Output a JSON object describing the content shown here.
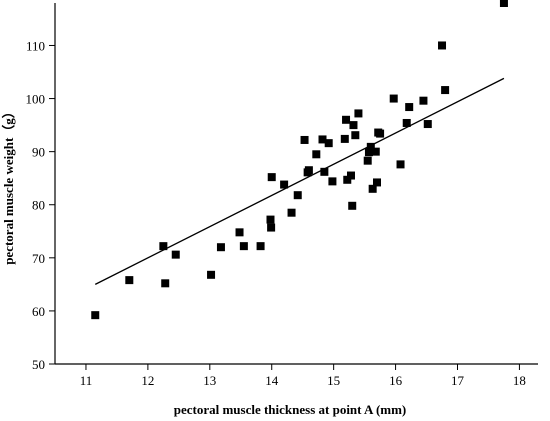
{
  "chart_data": {
    "type": "scatter",
    "title": "",
    "xlabel": "pectoral muscle thickness at point A (mm)",
    "ylabel": "pectoral muscle weight（g）",
    "xlim": [
      10.5,
      18.3
    ],
    "ylim": [
      50,
      118
    ],
    "xticks": [
      11,
      12,
      13,
      14,
      15,
      16,
      17,
      18
    ],
    "yticks": [
      50,
      60,
      70,
      80,
      90,
      100,
      110
    ],
    "grid": false,
    "legend": "none",
    "marker_color": "#000000",
    "series": [
      {
        "points": [
          [
            11.15,
            59.2
          ],
          [
            11.7,
            65.8
          ],
          [
            12.25,
            72.2
          ],
          [
            12.28,
            65.2
          ],
          [
            12.45,
            70.6
          ],
          [
            13.02,
            66.8
          ],
          [
            13.18,
            72.0
          ],
          [
            13.48,
            74.8
          ],
          [
            13.55,
            72.2
          ],
          [
            13.82,
            72.2
          ],
          [
            13.98,
            77.2
          ],
          [
            13.99,
            75.7
          ],
          [
            14.0,
            85.2
          ],
          [
            14.2,
            83.8
          ],
          [
            14.32,
            78.5
          ],
          [
            14.42,
            81.8
          ],
          [
            14.53,
            92.2
          ],
          [
            14.58,
            86.1
          ],
          [
            14.6,
            86.5
          ],
          [
            14.72,
            89.5
          ],
          [
            14.82,
            92.3
          ],
          [
            14.85,
            86.2
          ],
          [
            14.92,
            91.6
          ],
          [
            14.98,
            84.4
          ],
          [
            15.18,
            92.4
          ],
          [
            15.2,
            96.0
          ],
          [
            15.22,
            84.7
          ],
          [
            15.28,
            85.5
          ],
          [
            15.3,
            79.8
          ],
          [
            15.32,
            95.0
          ],
          [
            15.35,
            93.1
          ],
          [
            15.4,
            97.2
          ],
          [
            15.55,
            88.3
          ],
          [
            15.57,
            89.9
          ],
          [
            15.6,
            90.9
          ],
          [
            15.63,
            83.0
          ],
          [
            15.68,
            90.0
          ],
          [
            15.7,
            84.2
          ],
          [
            15.72,
            93.6
          ],
          [
            15.75,
            93.4
          ],
          [
            15.97,
            100.0
          ],
          [
            16.08,
            87.6
          ],
          [
            16.18,
            95.4
          ],
          [
            16.22,
            98.4
          ],
          [
            16.45,
            99.6
          ],
          [
            16.52,
            95.2
          ],
          [
            16.75,
            110.0
          ],
          [
            16.8,
            101.6
          ],
          [
            17.75,
            118.0
          ]
        ]
      }
    ],
    "fit_line": {
      "x": [
        11.15,
        17.75
      ],
      "y": [
        65.0,
        103.8
      ]
    }
  }
}
